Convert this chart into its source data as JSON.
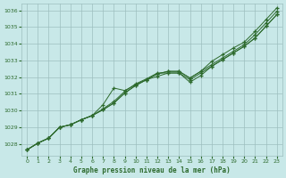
{
  "xlabel": "Graphe pression niveau de la mer (hPa)",
  "xlim": [
    -0.5,
    23.5
  ],
  "ylim": [
    1027.3,
    1036.4
  ],
  "yticks": [
    1028,
    1029,
    1030,
    1031,
    1032,
    1033,
    1034,
    1035,
    1036
  ],
  "xticks": [
    0,
    1,
    2,
    3,
    4,
    5,
    6,
    7,
    8,
    9,
    10,
    11,
    12,
    13,
    14,
    15,
    16,
    17,
    18,
    19,
    20,
    21,
    22,
    23
  ],
  "background_color": "#c8e8e8",
  "grid_color": "#9dbfbf",
  "line_color": "#2d6a2d",
  "text_color": "#2d6a2d",
  "series": [
    [
      1027.65,
      1028.05,
      1028.35,
      1029.0,
      1029.15,
      1029.45,
      1029.7,
      1030.05,
      1030.45,
      1031.05,
      1031.5,
      1031.85,
      1032.05,
      1032.25,
      1032.25,
      1031.85,
      1032.25,
      1032.65,
      1033.05,
      1033.45,
      1033.85,
      1034.35,
      1035.05,
      1035.75
    ],
    [
      1027.65,
      1028.05,
      1028.35,
      1029.0,
      1029.15,
      1029.45,
      1029.7,
      1030.05,
      1030.45,
      1031.05,
      1031.5,
      1031.85,
      1032.2,
      1032.35,
      1032.35,
      1031.95,
      1032.35,
      1032.75,
      1033.15,
      1033.55,
      1033.95,
      1034.55,
      1035.25,
      1035.95
    ],
    [
      1027.65,
      1028.05,
      1028.35,
      1029.0,
      1029.15,
      1029.45,
      1029.7,
      1030.35,
      1031.35,
      1031.2,
      1031.55,
      1031.85,
      1032.2,
      1032.35,
      1032.35,
      1031.95,
      1032.35,
      1032.95,
      1033.35,
      1033.75,
      1034.1,
      1034.75,
      1035.45,
      1036.15
    ],
    [
      1027.65,
      1028.05,
      1028.35,
      1029.0,
      1029.15,
      1029.45,
      1029.7,
      1030.1,
      1030.55,
      1031.15,
      1031.6,
      1031.9,
      1032.25,
      1032.25,
      1032.25,
      1031.7,
      1032.1,
      1032.65,
      1033.05,
      1033.45,
      1033.85,
      1034.35,
      1035.05,
      1035.75
    ]
  ]
}
